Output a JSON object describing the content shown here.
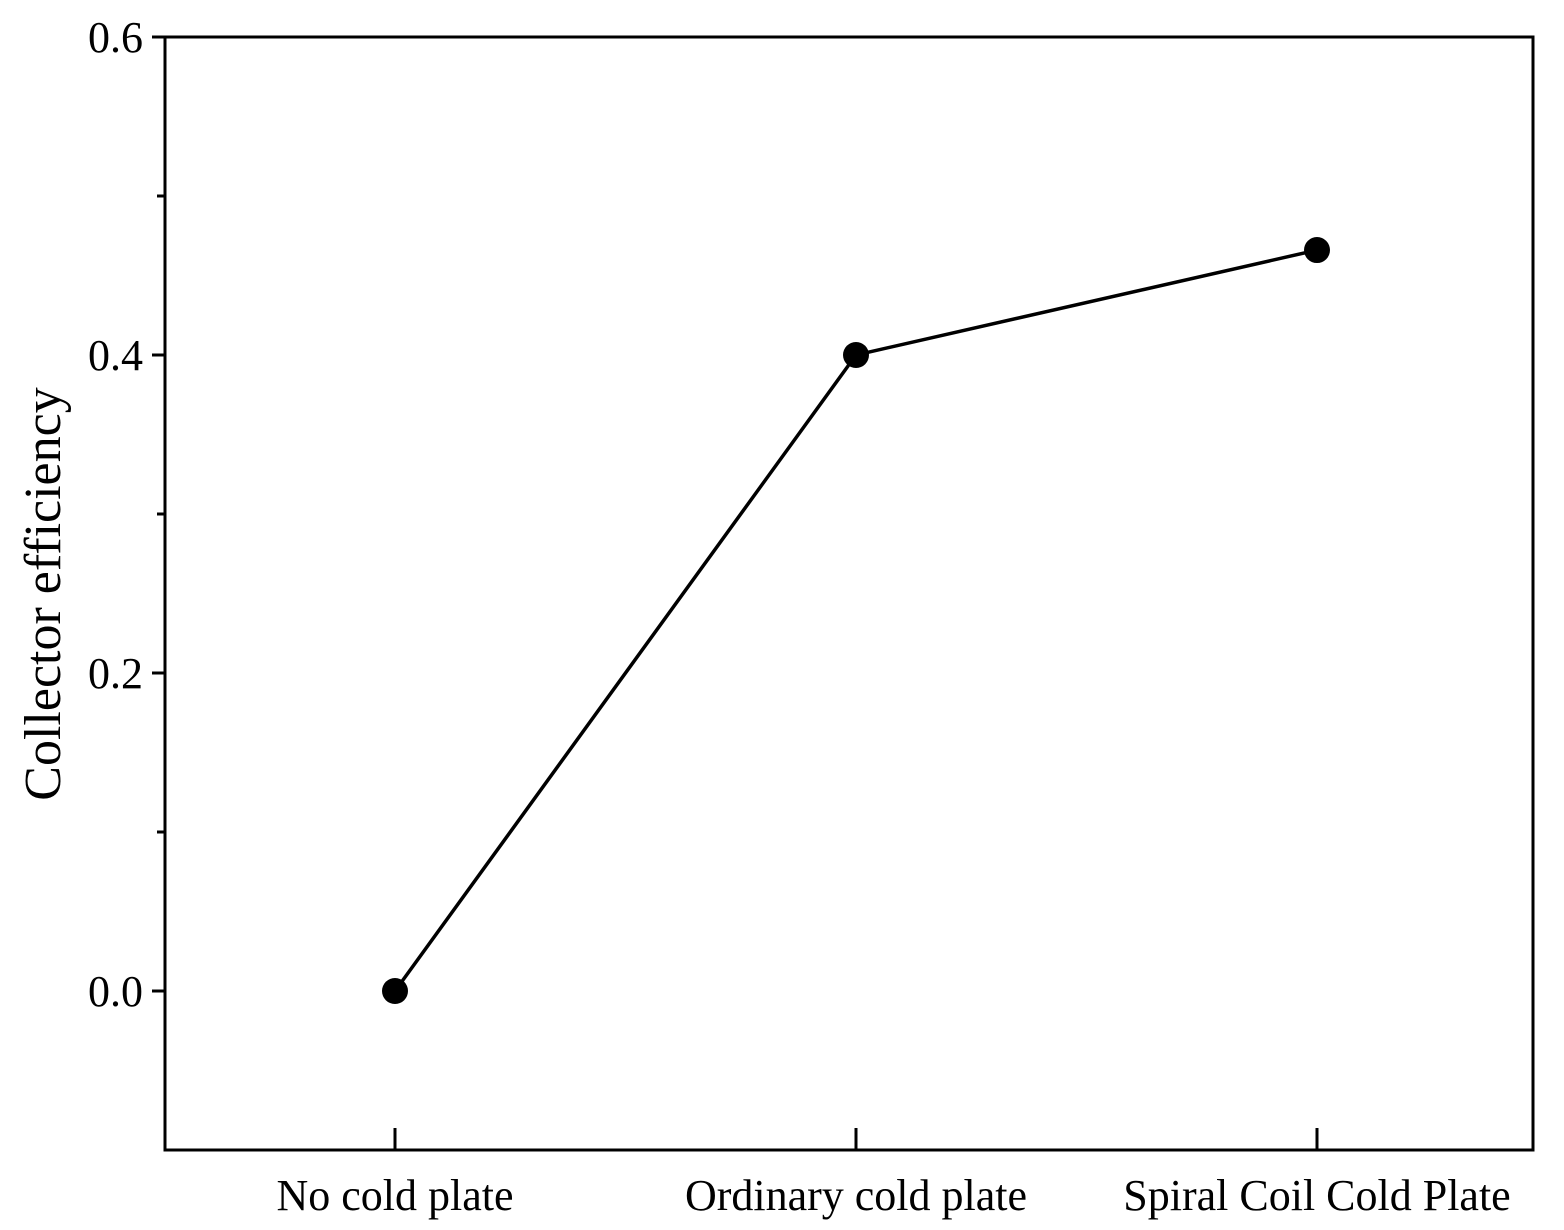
{
  "chart_data": {
    "type": "line",
    "title": "",
    "xlabel": "",
    "ylabel": "Collector efficiency",
    "categories": [
      "No cold plate",
      "Ordinary cold plate",
      "Spiral Coil Cold Plate"
    ],
    "series": [
      {
        "name": "Collector efficiency",
        "values": [
          0.0,
          0.4,
          0.466
        ]
      }
    ],
    "ylim": [
      -0.1,
      0.6
    ],
    "yticks_major": [
      "0.0",
      "0.2",
      "0.4",
      "0.6"
    ],
    "yticks_major_values": [
      0.0,
      0.2,
      0.4,
      0.6
    ],
    "yticks_minor_values": [
      -0.1,
      0.1,
      0.3,
      0.5
    ],
    "grid": false,
    "line_color": "#000000",
    "marker": "circle"
  }
}
